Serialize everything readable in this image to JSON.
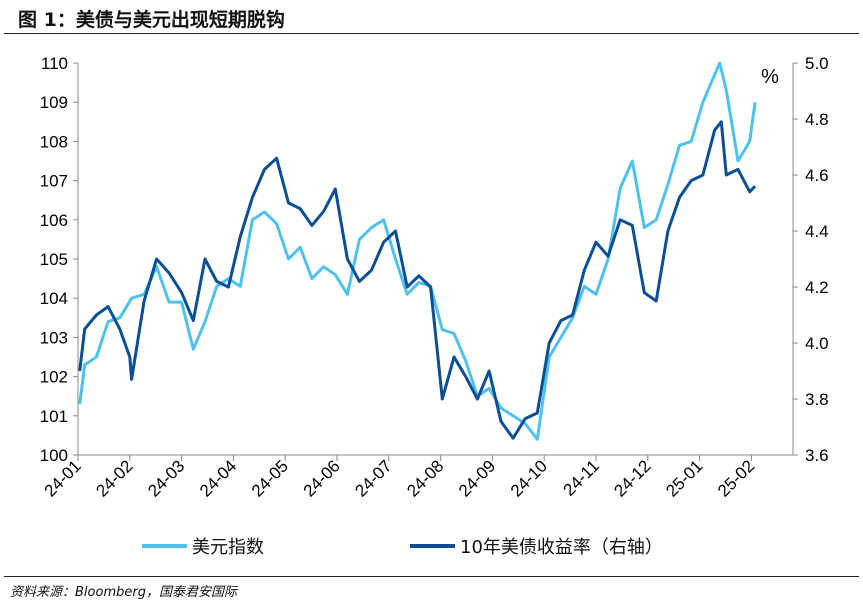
{
  "title": "图 1：美债与美元出现短期脱钩",
  "source": "资料来源：Bloomberg，国泰君安国际",
  "chart_data": {
    "type": "line",
    "title": "",
    "x_ticks": [
      "24-01",
      "24-02",
      "24-03",
      "24-04",
      "24-05",
      "24-06",
      "24-07",
      "24-08",
      "24-09",
      "24-10",
      "24-11",
      "24-12",
      "25-01",
      "25-02"
    ],
    "y_left": {
      "range": [
        100,
        110
      ],
      "ticks": [
        "100",
        "101",
        "102",
        "103",
        "104",
        "105",
        "106",
        "107",
        "108",
        "109",
        "110"
      ]
    },
    "y_right": {
      "range": [
        3.6,
        5.0
      ],
      "ticks": [
        "3.6",
        "3.8",
        "4.0",
        "4.2",
        "4.4",
        "4.6",
        "4.8",
        "5.0"
      ],
      "unit": "%"
    },
    "grid": false,
    "legend": "bottom",
    "series": [
      {
        "name": "美元指数",
        "axis": "left",
        "color": "#4FC1EE",
        "x": [
          "2024-01-02",
          "2024-01-05",
          "2024-01-12",
          "2024-01-19",
          "2024-01-26",
          "2024-02-02",
          "2024-02-09",
          "2024-02-16",
          "2024-02-23",
          "2024-03-01",
          "2024-03-08",
          "2024-03-15",
          "2024-03-22",
          "2024-03-29",
          "2024-04-05",
          "2024-04-12",
          "2024-04-19",
          "2024-04-26",
          "2024-05-03",
          "2024-05-10",
          "2024-05-17",
          "2024-05-24",
          "2024-05-31",
          "2024-06-07",
          "2024-06-14",
          "2024-06-21",
          "2024-06-28",
          "2024-07-05",
          "2024-07-12",
          "2024-07-19",
          "2024-07-26",
          "2024-08-02",
          "2024-08-09",
          "2024-08-16",
          "2024-08-23",
          "2024-08-30",
          "2024-09-06",
          "2024-09-13",
          "2024-09-20",
          "2024-09-27",
          "2024-10-04",
          "2024-10-11",
          "2024-10-18",
          "2024-10-25",
          "2024-11-01",
          "2024-11-08",
          "2024-11-15",
          "2024-11-22",
          "2024-11-29",
          "2024-12-06",
          "2024-12-13",
          "2024-12-20",
          "2024-12-27",
          "2025-01-03",
          "2025-01-10",
          "2025-01-13",
          "2025-01-17",
          "2025-01-24",
          "2025-01-31",
          "2025-02-03"
        ],
        "y": [
          101.3,
          102.3,
          102.5,
          103.4,
          103.5,
          104.0,
          104.1,
          104.8,
          103.9,
          103.9,
          102.7,
          103.4,
          104.3,
          104.5,
          104.3,
          106.0,
          106.2,
          105.9,
          105.0,
          105.3,
          104.5,
          104.8,
          104.6,
          104.1,
          105.5,
          105.8,
          106.0,
          105.0,
          104.1,
          104.4,
          104.3,
          103.2,
          103.1,
          102.4,
          101.5,
          101.7,
          101.2,
          101.0,
          100.8,
          100.4,
          102.5,
          103.0,
          103.5,
          104.3,
          104.1,
          105.0,
          106.8,
          107.5,
          105.8,
          106.0,
          106.9,
          107.9,
          108.0,
          109.0,
          109.7,
          110.0,
          109.3,
          107.5,
          108.0,
          109.0
        ]
      },
      {
        "name": "10年美债收益率（右轴）",
        "axis": "right",
        "color": "#0A4F96",
        "x": [
          "2024-01-02",
          "2024-01-05",
          "2024-01-12",
          "2024-01-19",
          "2024-01-26",
          "2024-02-01",
          "2024-02-02",
          "2024-02-09",
          "2024-02-16",
          "2024-02-23",
          "2024-03-01",
          "2024-03-08",
          "2024-03-15",
          "2024-03-22",
          "2024-03-29",
          "2024-04-05",
          "2024-04-12",
          "2024-04-19",
          "2024-04-26",
          "2024-05-03",
          "2024-05-10",
          "2024-05-17",
          "2024-05-24",
          "2024-05-31",
          "2024-06-07",
          "2024-06-14",
          "2024-06-21",
          "2024-06-28",
          "2024-07-05",
          "2024-07-12",
          "2024-07-19",
          "2024-07-26",
          "2024-08-02",
          "2024-08-09",
          "2024-08-16",
          "2024-08-23",
          "2024-08-30",
          "2024-09-06",
          "2024-09-13",
          "2024-09-20",
          "2024-09-27",
          "2024-10-04",
          "2024-10-11",
          "2024-10-18",
          "2024-10-25",
          "2024-11-01",
          "2024-11-08",
          "2024-11-15",
          "2024-11-22",
          "2024-11-29",
          "2024-12-06",
          "2024-12-13",
          "2024-12-20",
          "2024-12-27",
          "2025-01-03",
          "2025-01-10",
          "2025-01-14",
          "2025-01-17",
          "2025-01-24",
          "2025-01-31",
          "2025-02-03"
        ],
        "y": [
          3.9,
          4.05,
          4.1,
          4.13,
          4.05,
          3.95,
          3.87,
          4.15,
          4.3,
          4.25,
          4.18,
          4.08,
          4.3,
          4.22,
          4.2,
          4.38,
          4.52,
          4.62,
          4.66,
          4.5,
          4.48,
          4.42,
          4.47,
          4.55,
          4.3,
          4.22,
          4.26,
          4.36,
          4.4,
          4.2,
          4.24,
          4.2,
          3.8,
          3.95,
          3.88,
          3.8,
          3.9,
          3.72,
          3.66,
          3.73,
          3.75,
          4.0,
          4.08,
          4.1,
          4.26,
          4.36,
          4.31,
          4.44,
          4.42,
          4.18,
          4.15,
          4.4,
          4.52,
          4.58,
          4.6,
          4.76,
          4.79,
          4.6,
          4.62,
          4.54,
          4.56
        ]
      }
    ]
  }
}
